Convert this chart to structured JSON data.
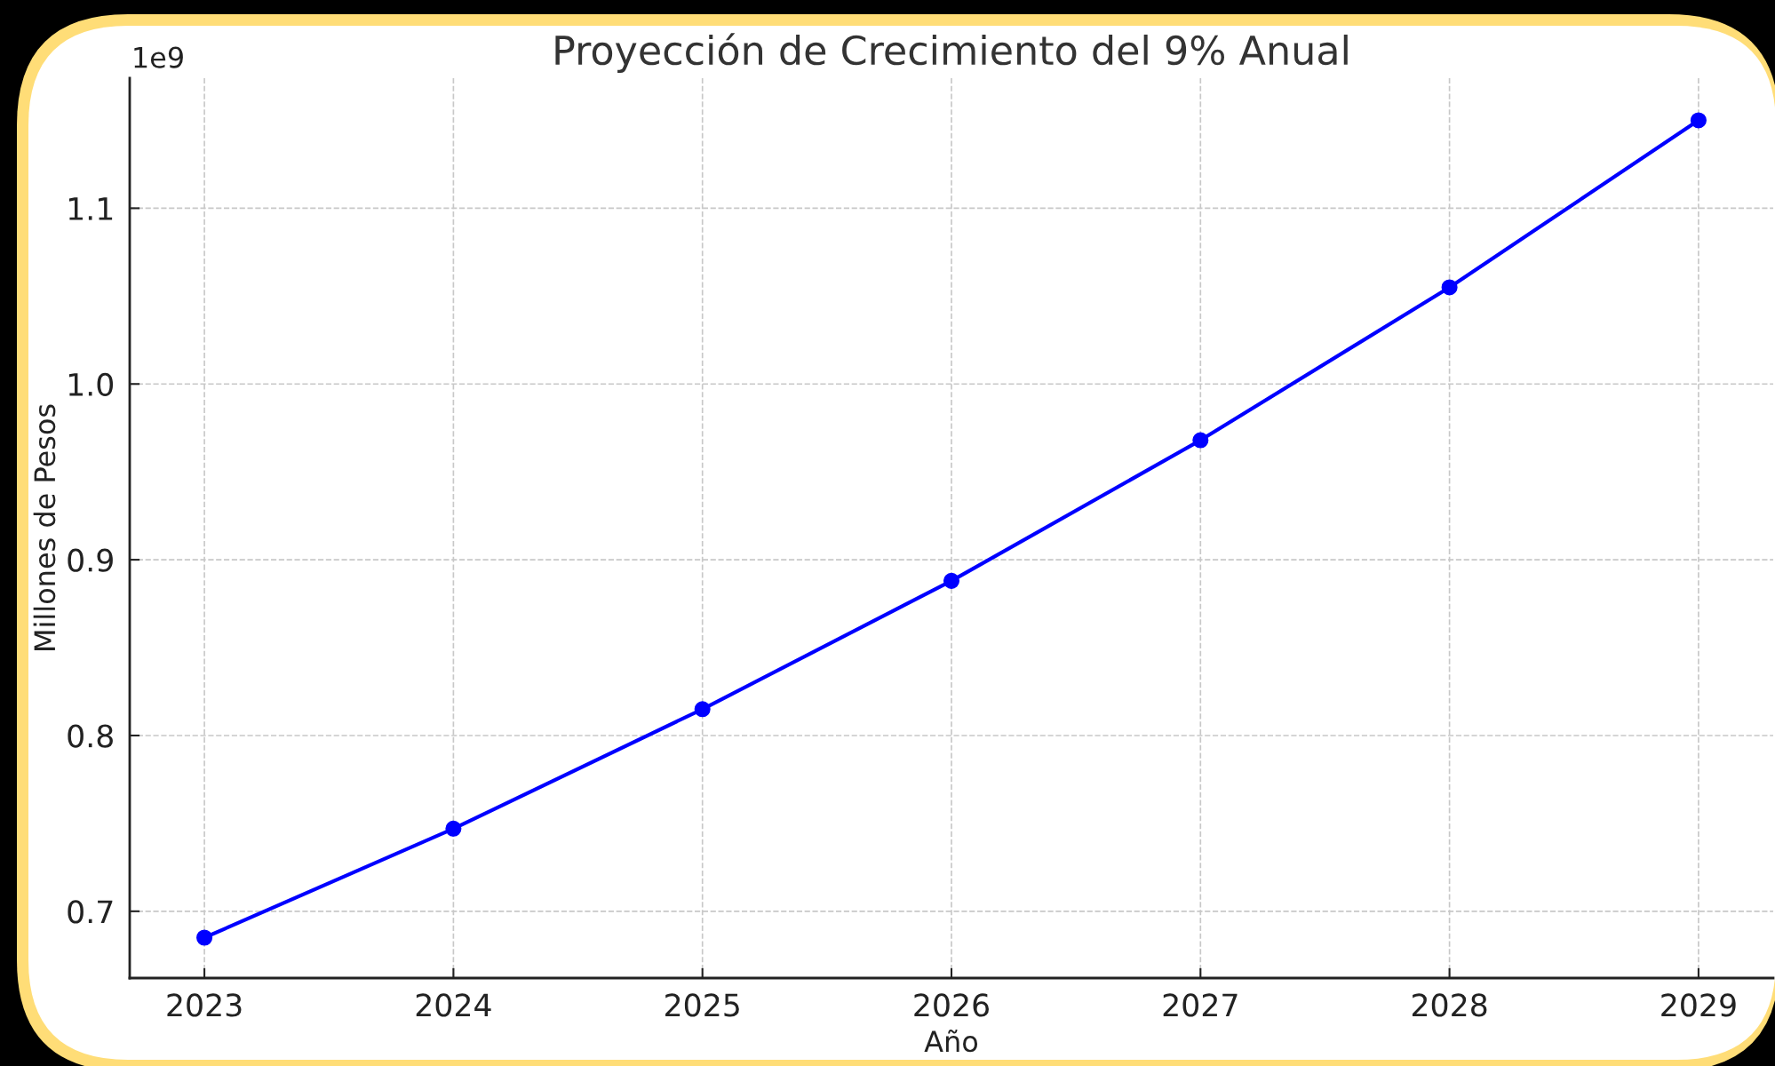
{
  "chart_data": {
    "type": "line",
    "title": "Proyección de Crecimiento del 9% Anual",
    "xlabel": "Año",
    "ylabel": "Millones de Pesos",
    "annotations": [
      "1e9"
    ],
    "x": [
      2023,
      2024,
      2025,
      2026,
      2027,
      2028,
      2029
    ],
    "series": [
      {
        "color": "#0000ff",
        "values": [
          0.685,
          0.747,
          0.815,
          0.888,
          0.968,
          1.055,
          1.15
        ]
      }
    ],
    "xlim": [
      2022.7,
      2029.3
    ],
    "xticks": [
      2023,
      2024,
      2025,
      2026,
      2027,
      2028,
      2029
    ],
    "ylim": [
      0.662,
      1.174
    ],
    "yticks": [
      0.7,
      0.8,
      0.9,
      {
        "value": 1,
        "label": "1.0"
      },
      1.1
    ],
    "grid": true,
    "marker": "circle",
    "line_style": "solid"
  }
}
